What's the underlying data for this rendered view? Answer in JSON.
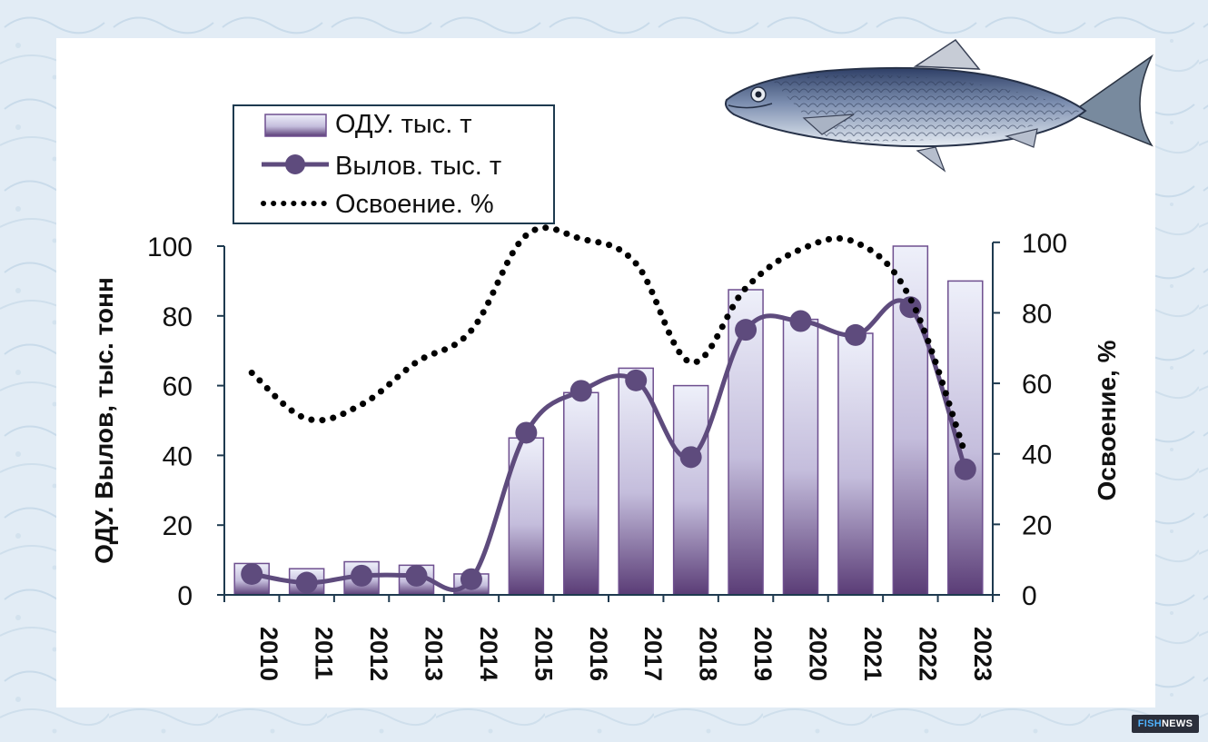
{
  "chart_data": {
    "type": "bar",
    "categories": [
      "2010",
      "2011",
      "2012",
      "2013",
      "2014",
      "2015",
      "2016",
      "2017",
      "2018",
      "2019",
      "2020",
      "2021",
      "2022",
      "2023"
    ],
    "series": [
      {
        "name": "ОДУ. тыс. т",
        "type": "bar",
        "axis": "left",
        "values": [
          9,
          7.5,
          9.5,
          8.5,
          6,
          45,
          58,
          65,
          60,
          87.5,
          79,
          75,
          100,
          90
        ]
      },
      {
        "name": "Вылов. тыс. т",
        "type": "line",
        "axis": "left",
        "values": [
          6,
          3.5,
          5.5,
          5.5,
          4.5,
          46.5,
          58.5,
          61.5,
          39.5,
          76,
          78.5,
          74.5,
          82.5,
          36
        ]
      },
      {
        "name": "Освоение. %",
        "type": "line-dotted",
        "axis": "right",
        "values": [
          63,
          50,
          54,
          66,
          75,
          102,
          101,
          94,
          66,
          87,
          98,
          100,
          84,
          40
        ]
      }
    ],
    "ylabel": "ОДУ. Вылов, тыс. тонн",
    "y2label": "Освоение, %",
    "ylim": [
      0,
      100
    ],
    "y2lim": [
      0,
      110
    ],
    "yticks": [
      "0",
      "20",
      "40",
      "60",
      "80",
      "100"
    ],
    "y2ticks": [
      "0",
      "20",
      "40",
      "60",
      "80",
      "100"
    ],
    "legend": [
      "ОДУ. тыс. т",
      "Вылов. тыс. т",
      "Освоение. %"
    ],
    "legend_position": "top-left",
    "grid": false,
    "colors": {
      "bar_top": "#eef0fa",
      "bar_mid": "#c4bddc",
      "bar_bottom": "#5a3c76",
      "bar_stroke": "#6e4f8f",
      "catch_line": "#5e4b7d",
      "percent_dots": "#000000",
      "axis": "#1e3a4f"
    }
  },
  "decor": {
    "image": "herring-fish-illustration"
  },
  "watermark": {
    "part1": "FISH",
    "part2": "NEWS"
  }
}
